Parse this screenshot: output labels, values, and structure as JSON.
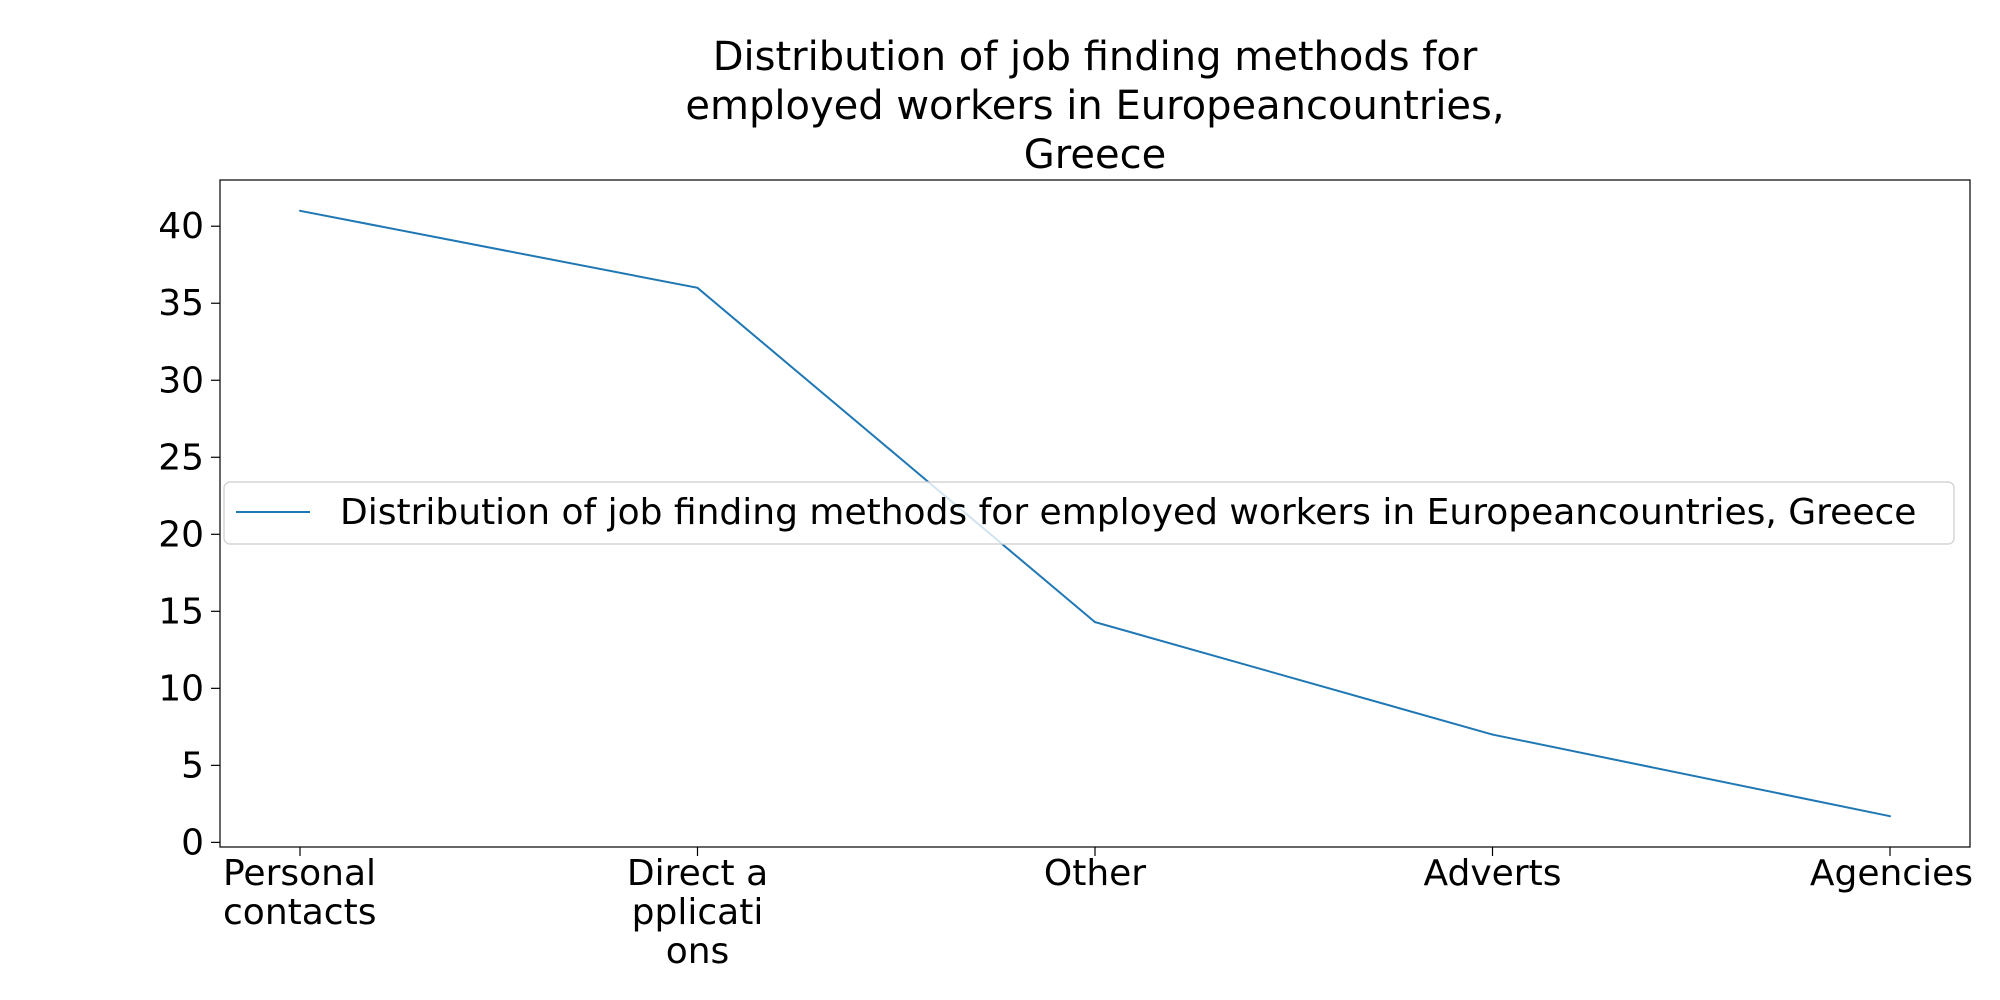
{
  "chart_data": {
    "type": "line",
    "title_lines": [
      "Distribution of job finding methods for",
      "employed workers in Europeancountries,",
      "Greece"
    ],
    "categories": [
      "Personal contacts",
      "Direct applications",
      "Other",
      "Adverts",
      "Agencies"
    ],
    "category_tick_lines": [
      [
        "Personal",
        "contacts"
      ],
      [
        "Direct a",
        "pplicati",
        "ons"
      ],
      [
        "Other"
      ],
      [
        "Adverts"
      ],
      [
        "Agencies"
      ]
    ],
    "series": [
      {
        "name": "Distribution of job finding methods for employed workers in Europeancountries, Greece",
        "values": [
          41.0,
          36.0,
          14.3,
          7.0,
          1.7
        ],
        "color": "#1f77b4"
      }
    ],
    "yticks": [
      "0",
      "5",
      "10",
      "15",
      "20",
      "25",
      "30",
      "35",
      "40"
    ],
    "ylim": [
      -0.3,
      43.0
    ],
    "xlabel": "",
    "ylabel": "",
    "grid": false,
    "legend_position": "center-left"
  }
}
